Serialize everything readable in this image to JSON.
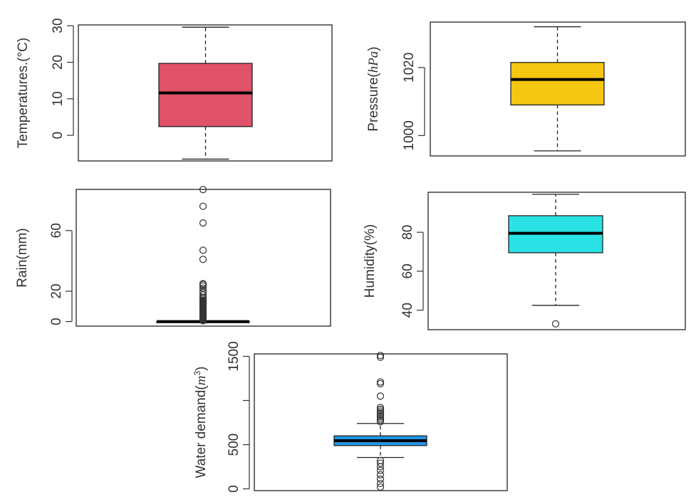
{
  "chart_data": [
    {
      "type": "boxplot",
      "ylabel": "Temperatures.(°C)",
      "yticks": [
        0,
        10,
        20,
        30
      ],
      "ylim": [
        -7,
        31
      ],
      "fill": "#e05268",
      "stats": {
        "whisker_low": -6.5,
        "q1": 2.4,
        "median": 11.6,
        "q3": 19.7,
        "whisker_high": 29.6
      },
      "outliers": []
    },
    {
      "type": "boxplot",
      "ylabel": "Pressure",
      "ylabel_unit": "hPa",
      "yticks": [
        1000,
        1020
      ],
      "ylim": [
        994,
        1034
      ],
      "fill": "#f5c710",
      "stats": {
        "whisker_low": 995.5,
        "q1": 1009,
        "median": 1016.5,
        "q3": 1021.5,
        "whisker_high": 1032
      },
      "outliers": []
    },
    {
      "type": "boxplot",
      "ylabel": "Rain(mm)",
      "yticks": [
        0,
        20,
        60
      ],
      "ylim": [
        -3,
        89
      ],
      "fill": "#000000",
      "stats": {
        "whisker_low": 0,
        "q1": 0,
        "median": 0,
        "q3": 0,
        "whisker_high": 0
      },
      "outliers": [
        0.5,
        1,
        1.5,
        2,
        2.5,
        3,
        3.5,
        4,
        4.5,
        5,
        5.5,
        6,
        6.5,
        7,
        7.5,
        8,
        8.5,
        9,
        9.5,
        10,
        10.5,
        11,
        11.5,
        12,
        12.5,
        13,
        13.5,
        14,
        15,
        16,
        17.5,
        19,
        20,
        22,
        23.5,
        24.5,
        25,
        41,
        47,
        65,
        76,
        87
      ]
    },
    {
      "type": "boxplot",
      "ylabel": "Humidity(%)",
      "yticks": [
        40,
        60,
        80
      ],
      "ylim": [
        30,
        102
      ],
      "fill": "#28e2e5",
      "stats": {
        "whisker_low": 42.5,
        "q1": 69.5,
        "median": 79.5,
        "q3": 88.5,
        "whisker_high": 99.5
      },
      "outliers": [
        33
      ]
    },
    {
      "type": "boxplot",
      "ylabel": "Water demand",
      "ylabel_unit": "m",
      "ylabel_unit_exponent": "3",
      "yticks": [
        0,
        500,
        1500
      ],
      "yticks_unlabeled": [
        1000
      ],
      "ylim": [
        -20,
        1560
      ],
      "fill": "#2297e6",
      "stats": {
        "whisker_low": 355,
        "q1": 490,
        "median": 545,
        "q3": 600,
        "whisker_high": 740
      },
      "outliers": [
        20,
        60,
        110,
        160,
        210,
        250,
        290,
        320,
        760,
        780,
        800,
        820,
        840,
        860,
        880,
        900,
        920,
        1050,
        1190,
        1210,
        1490,
        1510
      ]
    }
  ]
}
